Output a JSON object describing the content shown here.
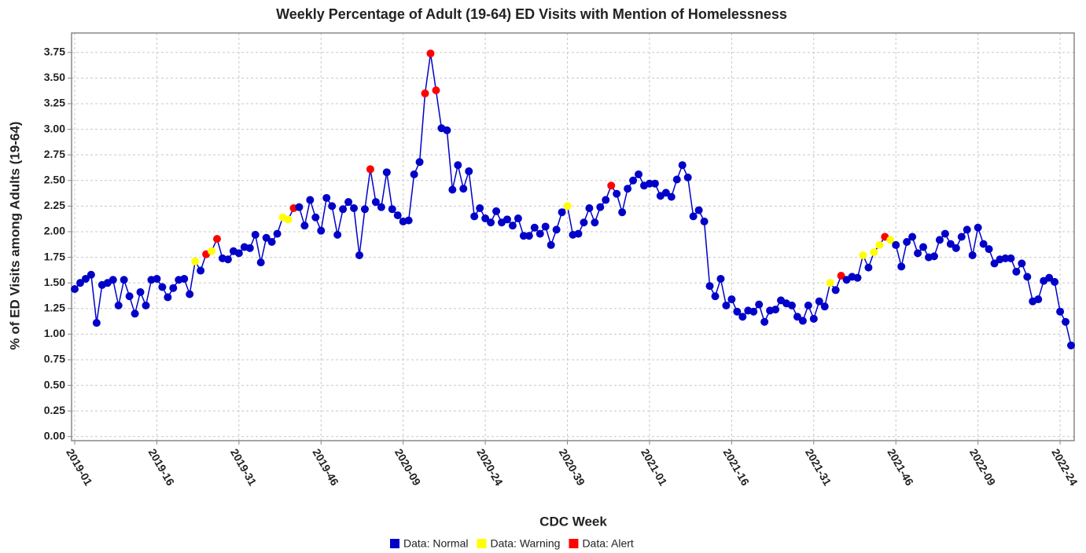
{
  "chart_data": {
    "type": "line",
    "title": "Weekly Percentage of Adult (19-64) ED Visits with Mention of Homelessness",
    "x_label": "CDC Week",
    "y_label": "% of ED Visits among Adults (19-64)",
    "grid": true,
    "legend": "bottom",
    "categories": [
      "2019-01",
      null,
      null,
      null,
      null,
      null,
      null,
      null,
      null,
      null,
      null,
      null,
      null,
      null,
      null,
      "2019-16",
      null,
      null,
      null,
      null,
      null,
      null,
      null,
      null,
      null,
      null,
      null,
      null,
      null,
      null,
      "2019-31",
      null,
      null,
      null,
      null,
      null,
      null,
      null,
      null,
      null,
      null,
      null,
      null,
      null,
      null,
      "2019-46",
      null,
      null,
      null,
      null,
      null,
      null,
      null,
      null,
      null,
      null,
      null,
      null,
      null,
      null,
      "2020-09",
      null,
      null,
      null,
      null,
      null,
      null,
      null,
      null,
      null,
      null,
      null,
      null,
      null,
      null,
      "2020-24",
      null,
      null,
      null,
      null,
      null,
      null,
      null,
      null,
      null,
      null,
      null,
      null,
      null,
      null,
      "2020-39",
      null,
      null,
      null,
      null,
      null,
      null,
      null,
      null,
      null,
      null,
      null,
      null,
      null,
      null,
      "2021-01",
      null,
      null,
      null,
      null,
      null,
      null,
      null,
      null,
      null,
      null,
      null,
      null,
      null,
      null,
      "2021-16",
      null,
      null,
      null,
      null,
      null,
      null,
      null,
      null,
      null,
      null,
      null,
      null,
      null,
      null,
      "2021-31",
      null,
      null,
      null,
      null,
      null,
      null,
      null,
      null,
      null,
      null,
      null,
      null,
      null,
      null,
      "2021-46",
      null,
      null,
      null,
      null,
      null,
      null,
      null,
      null,
      null,
      null,
      null,
      null,
      null,
      null,
      "2022-09",
      null,
      null,
      null,
      null,
      null,
      null,
      null,
      null,
      null,
      null,
      null,
      null,
      null,
      null,
      "2022-24",
      null,
      null
    ],
    "ylim": [
      -0.04,
      3.94
    ],
    "yticks": [
      {
        "value": 0,
        "label": "0.00"
      },
      {
        "value": 0.25,
        "label": "0.25"
      },
      {
        "value": 0.5,
        "label": "0.50"
      },
      {
        "value": 0.75,
        "label": "0.75"
      },
      {
        "value": 1,
        "label": "1.00"
      },
      {
        "value": 1.25,
        "label": "1.25"
      },
      {
        "value": 1.5,
        "label": "1.50"
      },
      {
        "value": 1.75,
        "label": "1.75"
      },
      {
        "value": 2,
        "label": "2.00"
      },
      {
        "value": 2.25,
        "label": "2.25"
      },
      {
        "value": 2.5,
        "label": "2.50"
      },
      {
        "value": 2.75,
        "label": "2.75"
      },
      {
        "value": 3,
        "label": "3.00"
      },
      {
        "value": 3.25,
        "label": "3.25"
      },
      {
        "value": 3.5,
        "label": "3.50"
      },
      {
        "value": 3.75,
        "label": "3.75"
      }
    ],
    "series": [
      {
        "name": "Data: Normal",
        "color": "#0000c8",
        "values": [
          1.44,
          1.5,
          1.54,
          1.58,
          1.11,
          1.48,
          1.5,
          1.53,
          1.28,
          1.53,
          1.37,
          1.2,
          1.41,
          1.28,
          1.53,
          1.54,
          1.46,
          1.36,
          1.45,
          1.53,
          1.54,
          1.39,
          null,
          1.62,
          null,
          null,
          null,
          1.74,
          1.73,
          1.81,
          1.79,
          1.85,
          1.84,
          1.97,
          1.7,
          1.94,
          1.9,
          1.98,
          null,
          null,
          null,
          2.24,
          2.06,
          2.31,
          2.14,
          2.01,
          2.33,
          2.25,
          1.97,
          2.22,
          2.29,
          2.23,
          1.77,
          2.22,
          null,
          2.29,
          2.24,
          2.58,
          2.22,
          2.16,
          2.1,
          2.11,
          2.56,
          2.68,
          null,
          null,
          null,
          3.01,
          2.99,
          2.41,
          2.65,
          2.42,
          2.59,
          2.15,
          2.23,
          2.13,
          2.09,
          2.2,
          2.09,
          2.12,
          2.06,
          2.13,
          1.96,
          1.96,
          2.04,
          1.98,
          2.05,
          1.87,
          2.02,
          2.19,
          null,
          1.97,
          1.98,
          2.09,
          2.23,
          2.09,
          2.24,
          2.31,
          null,
          2.37,
          2.19,
          2.42,
          2.5,
          2.56,
          2.45,
          2.47,
          2.47,
          2.35,
          2.38,
          2.34,
          2.51,
          2.65,
          2.53,
          2.15,
          2.21,
          2.1,
          1.47,
          1.37,
          1.54,
          1.28,
          1.34,
          1.22,
          1.17,
          1.23,
          1.22,
          1.29,
          1.12,
          1.23,
          1.24,
          1.33,
          1.3,
          1.28,
          1.17,
          1.13,
          1.28,
          1.15,
          1.32,
          1.27,
          null,
          1.43,
          null,
          1.53,
          1.56,
          1.55,
          null,
          1.65,
          null,
          null,
          null,
          null,
          1.87,
          1.66,
          1.9,
          1.95,
          1.79,
          1.85,
          1.75,
          1.76,
          1.92,
          1.98,
          1.88,
          1.84,
          1.95,
          2.02,
          1.77,
          2.04,
          1.88,
          1.83,
          1.69,
          1.73,
          1.74,
          1.74,
          1.61,
          1.69,
          1.56,
          1.32,
          1.34,
          1.52,
          1.55,
          1.51,
          1.22,
          1.12,
          0.89
        ]
      },
      {
        "name": "Data: Warning",
        "color": "#ffff00",
        "values": [
          null,
          null,
          null,
          null,
          null,
          null,
          null,
          null,
          null,
          null,
          null,
          null,
          null,
          null,
          null,
          null,
          null,
          null,
          null,
          null,
          null,
          null,
          1.71,
          null,
          null,
          1.81,
          null,
          null,
          null,
          null,
          null,
          null,
          null,
          null,
          null,
          null,
          null,
          null,
          2.14,
          2.12,
          null,
          null,
          null,
          null,
          null,
          null,
          null,
          null,
          null,
          null,
          null,
          null,
          null,
          null,
          null,
          null,
          null,
          null,
          null,
          null,
          null,
          null,
          null,
          null,
          null,
          null,
          null,
          null,
          null,
          null,
          null,
          null,
          null,
          null,
          null,
          null,
          null,
          null,
          null,
          null,
          null,
          null,
          null,
          null,
          null,
          null,
          null,
          null,
          null,
          null,
          2.25,
          null,
          null,
          null,
          null,
          null,
          null,
          null,
          null,
          null,
          null,
          null,
          null,
          null,
          null,
          null,
          null,
          null,
          null,
          null,
          null,
          null,
          null,
          null,
          null,
          null,
          null,
          null,
          null,
          null,
          null,
          null,
          null,
          null,
          null,
          null,
          null,
          null,
          null,
          null,
          null,
          null,
          null,
          null,
          null,
          null,
          null,
          null,
          1.5,
          null,
          null,
          null,
          null,
          null,
          1.77,
          null,
          1.8,
          1.87,
          null,
          1.92,
          null,
          null,
          null,
          null,
          null,
          null,
          null,
          null,
          null,
          null,
          null,
          null,
          null,
          null,
          null,
          null,
          null,
          null,
          null,
          null,
          null,
          null,
          null,
          null,
          null,
          null,
          null,
          null,
          null,
          null,
          null,
          null,
          null
        ]
      },
      {
        "name": "Data: Alert",
        "color": "#ff0000",
        "values": [
          null,
          null,
          null,
          null,
          null,
          null,
          null,
          null,
          null,
          null,
          null,
          null,
          null,
          null,
          null,
          null,
          null,
          null,
          null,
          null,
          null,
          null,
          null,
          null,
          1.78,
          null,
          1.93,
          null,
          null,
          null,
          null,
          null,
          null,
          null,
          null,
          null,
          null,
          null,
          null,
          null,
          2.23,
          null,
          null,
          null,
          null,
          null,
          null,
          null,
          null,
          null,
          null,
          null,
          null,
          null,
          2.61,
          null,
          null,
          null,
          null,
          null,
          null,
          null,
          null,
          null,
          3.35,
          3.74,
          3.38,
          null,
          null,
          null,
          null,
          null,
          null,
          null,
          null,
          null,
          null,
          null,
          null,
          null,
          null,
          null,
          null,
          null,
          null,
          null,
          null,
          null,
          null,
          null,
          null,
          null,
          null,
          null,
          null,
          null,
          null,
          null,
          2.45,
          null,
          null,
          null,
          null,
          null,
          null,
          null,
          null,
          null,
          null,
          null,
          null,
          null,
          null,
          null,
          null,
          null,
          null,
          null,
          null,
          null,
          null,
          null,
          null,
          null,
          null,
          null,
          null,
          null,
          null,
          null,
          null,
          null,
          null,
          null,
          null,
          null,
          null,
          null,
          null,
          null,
          1.57,
          null,
          null,
          null,
          null,
          null,
          null,
          null,
          1.95,
          null,
          null,
          null,
          null,
          null,
          null,
          null,
          null,
          null,
          null,
          null,
          null,
          null,
          null,
          null,
          null,
          null,
          null,
          null,
          null,
          null,
          null,
          null,
          null,
          null,
          null,
          null,
          null,
          null,
          null,
          null,
          null,
          null,
          null
        ]
      }
    ]
  }
}
